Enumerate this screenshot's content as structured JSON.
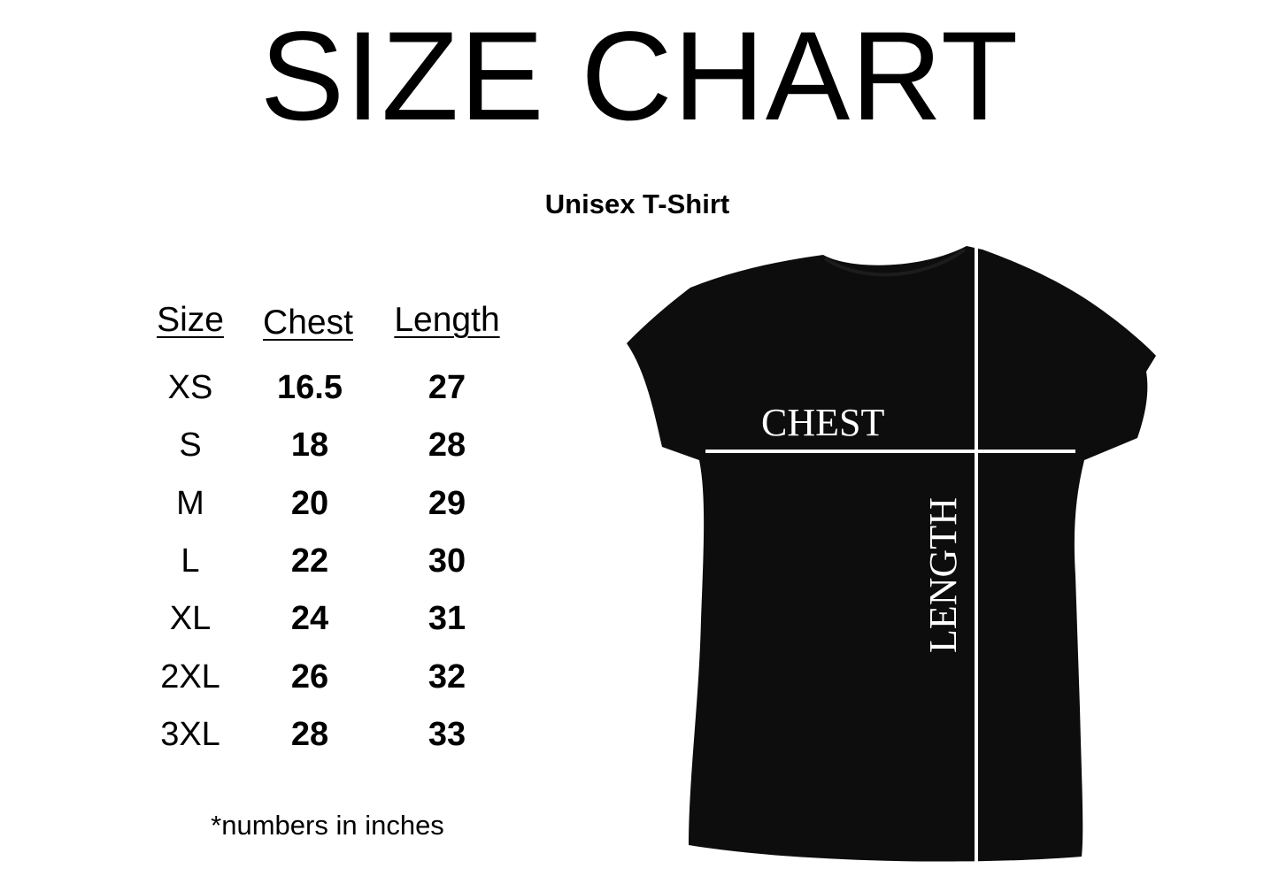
{
  "title": "SIZE CHART",
  "subtitle": "Unisex T-Shirt",
  "table": {
    "headers": [
      "Size",
      "Chest",
      "Length"
    ],
    "rows": [
      [
        "XS",
        "16.5",
        "27"
      ],
      [
        "S",
        "18",
        "28"
      ],
      [
        "M",
        "20",
        "29"
      ],
      [
        "L",
        "22",
        "30"
      ],
      [
        "XL",
        "24",
        "31"
      ],
      [
        "2XL",
        "26",
        "32"
      ],
      [
        "3XL",
        "28",
        "33"
      ]
    ]
  },
  "note": "*numbers in inches",
  "diagram": {
    "chest_label": "CHEST",
    "length_label": "LENGTH",
    "shirt_color": "#0d0d0d",
    "line_color": "#ffffff"
  }
}
